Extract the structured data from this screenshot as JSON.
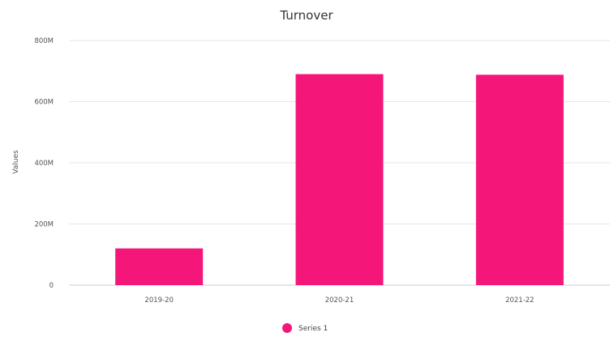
{
  "chart_data": {
    "type": "bar",
    "title": "Turnover",
    "ylabel": "Values",
    "xlabel": "",
    "categories": [
      "2019-20",
      "2020-21",
      "2021-22"
    ],
    "series": [
      {
        "name": "Series 1",
        "values": [
          120,
          690,
          688
        ],
        "color": "#f5167a"
      }
    ],
    "ylim": [
      0,
      800
    ],
    "yticks": [
      {
        "value": 0,
        "label": "0"
      },
      {
        "value": 200,
        "label": "200M"
      },
      {
        "value": 400,
        "label": "400M"
      },
      {
        "value": 600,
        "label": "600M"
      },
      {
        "value": 800,
        "label": "800M"
      }
    ],
    "grid": true,
    "legend": "bottom-center"
  }
}
